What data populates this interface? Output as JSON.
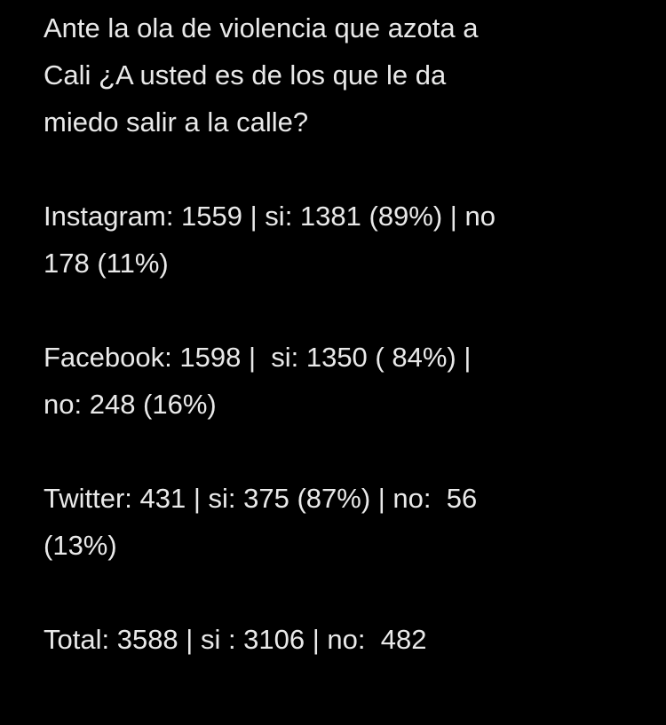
{
  "question": {
    "lines": [
      "Ante la ola de violencia que azota a",
      "Cali ¿A usted es de los que le da",
      "miedo salir a la calle?"
    ]
  },
  "results": [
    {
      "platform": "Instagram",
      "lines": [
        "Instagram: 1559 | si: 1381 (89%) | no",
        "178 (11%)"
      ]
    },
    {
      "platform": "Facebook",
      "lines": [
        "Facebook: 1598 |  si: 1350 ( 84%) |",
        "no: 248 (16%)"
      ]
    },
    {
      "platform": "Twitter",
      "lines": [
        "Twitter: 431 | si: 375 (87%) | no:  56",
        "(13%)"
      ]
    },
    {
      "platform": "Total",
      "lines": [
        "Total: 3588 | si : 3106 | no:  482"
      ]
    }
  ]
}
